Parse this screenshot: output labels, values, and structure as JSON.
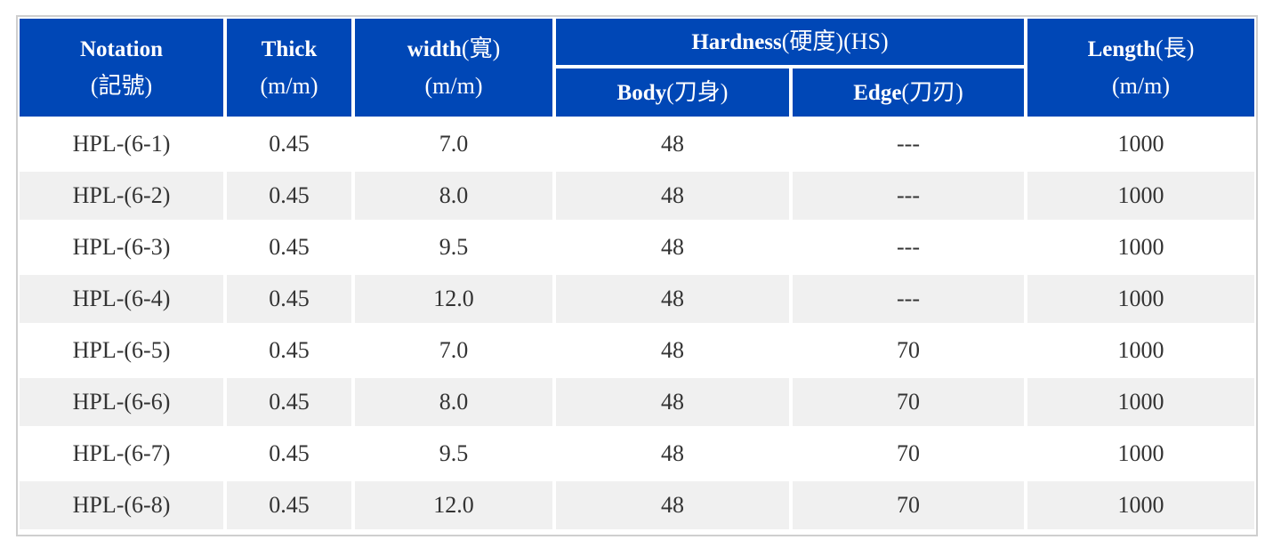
{
  "table": {
    "headers": {
      "notation": {
        "main": "Notation",
        "sub": "(記號)"
      },
      "thick": {
        "main": "Thick",
        "sub": "(m/m)"
      },
      "width": {
        "main": "width",
        "main_suffix": "(寬)",
        "sub": "(m/m)"
      },
      "hardness": {
        "main": "Hardness",
        "main_suffix": "(硬度)(HS)"
      },
      "body": {
        "main": "Body",
        "main_suffix": "(刀身)"
      },
      "edge": {
        "main": "Edge",
        "main_suffix": "(刀刃)"
      },
      "length": {
        "main": "Length",
        "main_suffix": "(長)",
        "sub": "(m/m)"
      }
    },
    "rows": [
      {
        "notation": "HPL-(6-1)",
        "thick": "0.45",
        "width": "7.0",
        "body": "48",
        "edge": "---",
        "length": "1000"
      },
      {
        "notation": "HPL-(6-2)",
        "thick": "0.45",
        "width": "8.0",
        "body": "48",
        "edge": "---",
        "length": "1000"
      },
      {
        "notation": "HPL-(6-3)",
        "thick": "0.45",
        "width": "9.5",
        "body": "48",
        "edge": "---",
        "length": "1000"
      },
      {
        "notation": "HPL-(6-4)",
        "thick": "0.45",
        "width": "12.0",
        "body": "48",
        "edge": "---",
        "length": "1000"
      },
      {
        "notation": "HPL-(6-5)",
        "thick": "0.45",
        "width": "7.0",
        "body": "48",
        "edge": "70",
        "length": "1000"
      },
      {
        "notation": "HPL-(6-6)",
        "thick": "0.45",
        "width": "8.0",
        "body": "48",
        "edge": "70",
        "length": "1000"
      },
      {
        "notation": "HPL-(6-7)",
        "thick": "0.45",
        "width": "9.5",
        "body": "48",
        "edge": "70",
        "length": "1000"
      },
      {
        "notation": "HPL-(6-8)",
        "thick": "0.45",
        "width": "12.0",
        "body": "48",
        "edge": "70",
        "length": "1000"
      }
    ],
    "colors": {
      "header_bg": "#0047b6",
      "header_text": "#ffffff",
      "row_odd_bg": "#ffffff",
      "row_even_bg": "#f0f0f0",
      "cell_text": "#333333",
      "frame_border": "#cfcfcf"
    }
  }
}
